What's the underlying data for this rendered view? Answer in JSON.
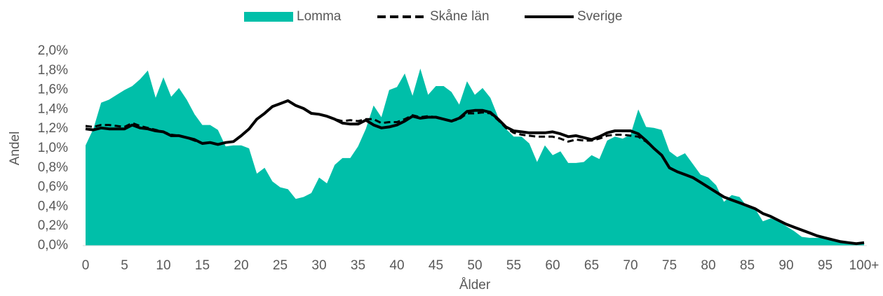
{
  "chart_data": {
    "type": "area-line",
    "x_label": "Ålder",
    "y_label": "Andel",
    "categories": [
      "0",
      null,
      null,
      null,
      null,
      "5",
      null,
      null,
      null,
      null,
      "10",
      null,
      null,
      null,
      null,
      "15",
      null,
      null,
      null,
      null,
      "20",
      null,
      null,
      null,
      null,
      "25",
      null,
      null,
      null,
      null,
      "30",
      null,
      null,
      null,
      null,
      "35",
      null,
      null,
      null,
      null,
      "40",
      null,
      null,
      null,
      null,
      "45",
      null,
      null,
      null,
      null,
      "50",
      null,
      null,
      null,
      null,
      "55",
      null,
      null,
      null,
      null,
      "60",
      null,
      null,
      null,
      null,
      "65",
      null,
      null,
      null,
      null,
      "70",
      null,
      null,
      null,
      null,
      "75",
      null,
      null,
      null,
      null,
      "80",
      null,
      null,
      null,
      null,
      "85",
      null,
      null,
      null,
      null,
      "90",
      null,
      null,
      null,
      null,
      "95",
      null,
      null,
      null,
      null,
      "100+"
    ],
    "ylim": [
      0,
      2.0
    ],
    "yticks": [
      {
        "value": 0,
        "label": "0,0%"
      },
      {
        "value": 0.2,
        "label": "0,2%"
      },
      {
        "value": 0.4,
        "label": "0,4%"
      },
      {
        "value": 0.6,
        "label": "0,6%"
      },
      {
        "value": 0.8,
        "label": "0,8%"
      },
      {
        "value": 1.0,
        "label": "1,0%"
      },
      {
        "value": 1.2,
        "label": "1,2%"
      },
      {
        "value": 1.4,
        "label": "1,4%"
      },
      {
        "value": 1.6,
        "label": "1,6%"
      },
      {
        "value": 1.8,
        "label": "1,8%"
      },
      {
        "value": 2.0,
        "label": "2,0%"
      }
    ],
    "series": [
      {
        "name": "Lomma",
        "kind": "area",
        "color": "#00bfa9",
        "values": [
          1.03,
          1.2,
          1.47,
          1.5,
          1.55,
          1.6,
          1.64,
          1.71,
          1.8,
          1.52,
          1.73,
          1.53,
          1.62,
          1.5,
          1.35,
          1.24,
          1.24,
          1.19,
          1.02,
          1.03,
          1.03,
          1.0,
          0.74,
          0.8,
          0.66,
          0.6,
          0.58,
          0.48,
          0.5,
          0.54,
          0.7,
          0.64,
          0.83,
          0.9,
          0.9,
          1.02,
          1.2,
          1.44,
          1.32,
          1.6,
          1.63,
          1.77,
          1.54,
          1.82,
          1.55,
          1.64,
          1.64,
          1.58,
          1.45,
          1.69,
          1.55,
          1.62,
          1.52,
          1.32,
          1.2,
          1.12,
          1.12,
          1.05,
          0.86,
          1.03,
          0.93,
          0.97,
          0.85,
          0.85,
          0.86,
          0.93,
          0.89,
          1.08,
          1.12,
          1.1,
          1.14,
          1.4,
          1.22,
          1.21,
          1.19,
          0.97,
          0.91,
          0.95,
          0.84,
          0.73,
          0.7,
          0.62,
          0.45,
          0.52,
          0.5,
          0.4,
          0.38,
          0.25,
          0.28,
          0.25,
          0.2,
          0.15,
          0.09,
          0.08,
          0.08,
          0.08,
          0.06,
          0.03,
          0.02,
          0.01,
          0.02
        ]
      },
      {
        "name": "Skåne län",
        "kind": "dashed",
        "color": "#000000",
        "values": [
          1.23,
          1.22,
          1.24,
          1.24,
          1.23,
          1.22,
          1.26,
          1.23,
          1.21,
          1.19,
          1.17,
          1.14,
          1.13,
          1.11,
          1.08,
          1.05,
          1.06,
          1.04,
          1.06,
          1.07,
          1.13,
          1.2,
          1.3,
          1.36,
          1.43,
          1.46,
          1.49,
          1.44,
          1.41,
          1.36,
          1.35,
          1.33,
          1.3,
          1.28,
          1.29,
          1.28,
          1.3,
          1.3,
          1.26,
          1.27,
          1.27,
          1.3,
          1.34,
          1.32,
          1.33,
          1.32,
          1.3,
          1.28,
          1.3,
          1.36,
          1.36,
          1.37,
          1.36,
          1.29,
          1.21,
          1.16,
          1.14,
          1.13,
          1.12,
          1.12,
          1.12,
          1.1,
          1.07,
          1.09,
          1.08,
          1.08,
          1.1,
          1.13,
          1.14,
          1.14,
          1.13,
          1.12,
          1.07,
          1.0,
          0.93,
          0.8,
          0.76,
          0.73,
          0.7,
          0.65,
          0.6,
          0.55,
          0.5,
          0.47,
          0.44,
          0.41,
          0.38,
          0.33,
          0.3,
          0.26,
          0.22,
          0.19,
          0.16,
          0.13,
          0.1,
          0.08,
          0.06,
          0.04,
          0.03,
          0.02,
          0.03
        ]
      },
      {
        "name": "Sverige",
        "kind": "solid",
        "color": "#000000",
        "values": [
          1.2,
          1.19,
          1.21,
          1.2,
          1.2,
          1.2,
          1.24,
          1.21,
          1.2,
          1.18,
          1.17,
          1.13,
          1.13,
          1.11,
          1.09,
          1.05,
          1.06,
          1.04,
          1.06,
          1.07,
          1.13,
          1.2,
          1.3,
          1.36,
          1.43,
          1.46,
          1.49,
          1.44,
          1.41,
          1.36,
          1.35,
          1.33,
          1.3,
          1.26,
          1.25,
          1.25,
          1.29,
          1.24,
          1.21,
          1.22,
          1.24,
          1.28,
          1.33,
          1.31,
          1.32,
          1.32,
          1.3,
          1.28,
          1.31,
          1.38,
          1.39,
          1.39,
          1.37,
          1.3,
          1.22,
          1.18,
          1.17,
          1.16,
          1.16,
          1.16,
          1.17,
          1.15,
          1.12,
          1.13,
          1.11,
          1.09,
          1.12,
          1.16,
          1.18,
          1.18,
          1.18,
          1.15,
          1.08,
          1.0,
          0.93,
          0.8,
          0.76,
          0.73,
          0.7,
          0.65,
          0.6,
          0.55,
          0.5,
          0.47,
          0.44,
          0.41,
          0.38,
          0.33,
          0.3,
          0.26,
          0.22,
          0.19,
          0.16,
          0.13,
          0.1,
          0.08,
          0.06,
          0.04,
          0.03,
          0.02,
          0.03
        ]
      }
    ]
  }
}
